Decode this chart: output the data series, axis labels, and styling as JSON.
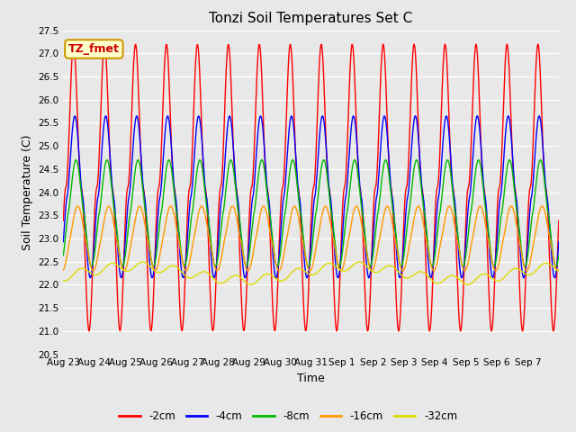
{
  "title": "Tonzi Soil Temperatures Set C",
  "xlabel": "Time",
  "ylabel": "Soil Temperature (C)",
  "ylim": [
    20.5,
    27.5
  ],
  "series_labels": [
    "-2cm",
    "-4cm",
    "-8cm",
    "-16cm",
    "-32cm"
  ],
  "series_colors": [
    "#ff0000",
    "#0000ff",
    "#00bb00",
    "#ff9900",
    "#dddd00"
  ],
  "annotation_text": "TZ_fmet",
  "annotation_bg": "#ffffcc",
  "annotation_border": "#cc9900",
  "plot_bg_color": "#e8e8e8",
  "grid_color": "#ffffff",
  "x_tick_labels": [
    "Aug 23",
    "Aug 24",
    "Aug 25",
    "Aug 26",
    "Aug 27",
    "Aug 28",
    "Aug 29",
    "Aug 30",
    "Aug 31",
    "Sep 1",
    "Sep 2",
    "Sep 3",
    "Sep 4",
    "Sep 5",
    "Sep 6",
    "Sep 7"
  ],
  "num_days": 16,
  "title_fontsize": 11,
  "axis_fontsize": 9,
  "tick_fontsize": 7.5,
  "legend_fontsize": 8.5
}
